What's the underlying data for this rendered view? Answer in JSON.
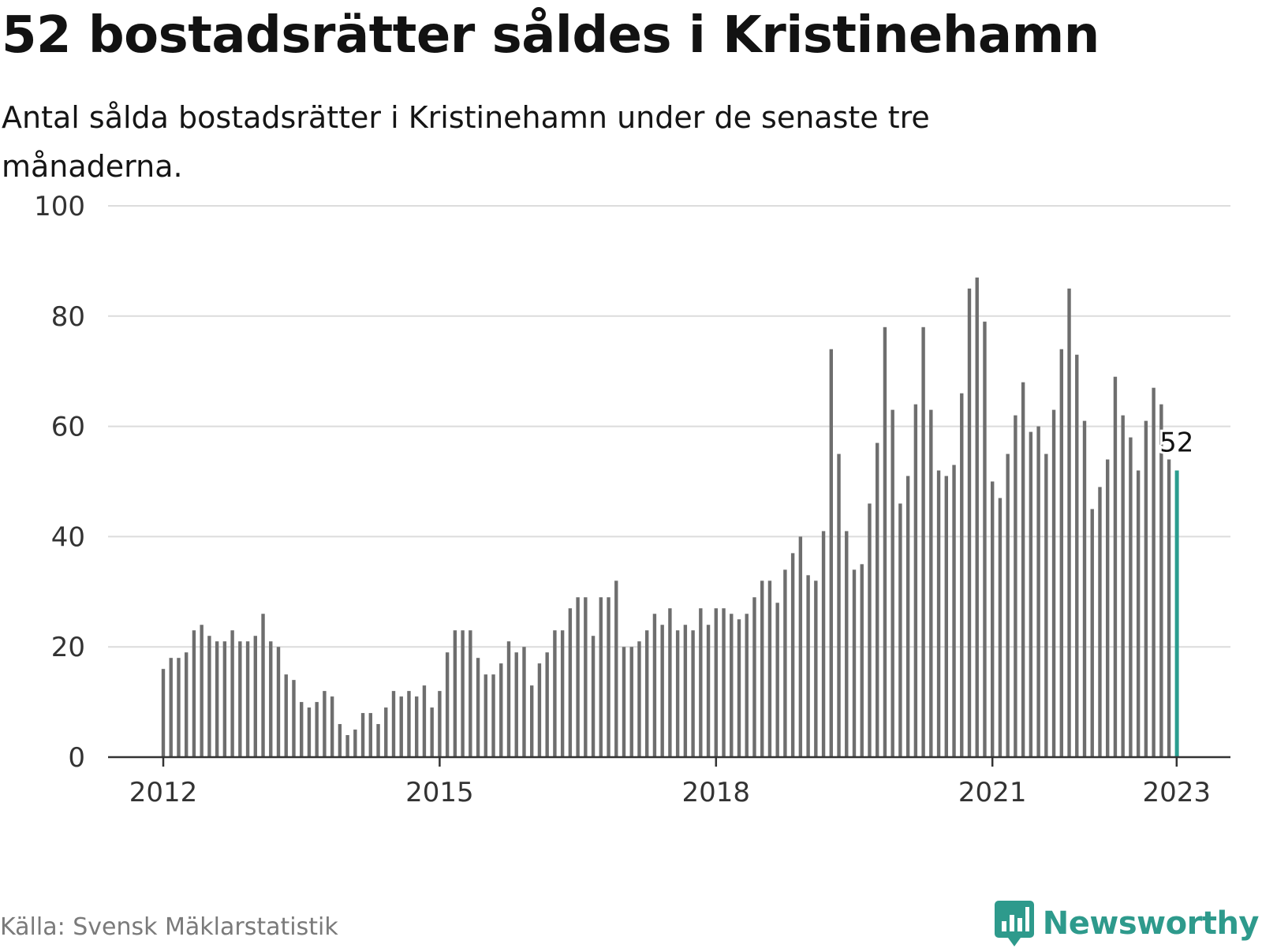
{
  "title": "52 bostadsrätter såldes i Kristinehamn",
  "subtitle": "Antal sålda bostadsrätter i Kristinehamn under de senaste tre månaderna.",
  "source": "Källa: Svensk Mäklarstatistik",
  "brand": {
    "name": "Newsworthy",
    "icon": "newsworthy-logo-icon",
    "color": "#2e9a8c"
  },
  "chart_data": {
    "type": "bar",
    "x_start": "2012-01",
    "x_end": "2023-01",
    "x_ticks": [
      "2012",
      "2015",
      "2018",
      "2021",
      "2023"
    ],
    "y_ticks": [
      "0",
      "20",
      "40",
      "60",
      "80",
      "100"
    ],
    "ylim": [
      0,
      100
    ],
    "grid": true,
    "bar_color": "#6e6e6e",
    "highlight_color": "#2a9d8f",
    "highlight_label": "52",
    "values": [
      16,
      18,
      18,
      19,
      23,
      24,
      22,
      21,
      21,
      23,
      21,
      21,
      22,
      26,
      21,
      20,
      15,
      14,
      10,
      9,
      10,
      12,
      11,
      6,
      4,
      5,
      8,
      8,
      6,
      9,
      12,
      11,
      12,
      11,
      13,
      9,
      12,
      19,
      23,
      23,
      23,
      18,
      15,
      15,
      17,
      21,
      19,
      20,
      13,
      17,
      19,
      23,
      23,
      27,
      29,
      29,
      22,
      29,
      29,
      32,
      20,
      20,
      21,
      23,
      26,
      24,
      27,
      23,
      24,
      23,
      27,
      24,
      27,
      27,
      26,
      25,
      26,
      29,
      32,
      32,
      28,
      34,
      37,
      40,
      33,
      32,
      41,
      74,
      55,
      41,
      34,
      35,
      46,
      57,
      78,
      63,
      46,
      51,
      64,
      78,
      63,
      52,
      51,
      53,
      66,
      85,
      87,
      79,
      50,
      47,
      55,
      62,
      68,
      59,
      60,
      55,
      63,
      74,
      85,
      73,
      61,
      45,
      49,
      54,
      69,
      62,
      58,
      52,
      61,
      67,
      64,
      54,
      52
    ]
  }
}
